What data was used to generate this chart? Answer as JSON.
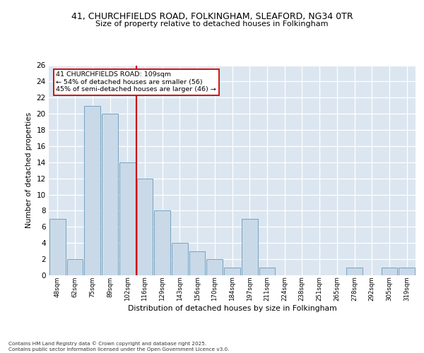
{
  "title_line1": "41, CHURCHFIELDS ROAD, FOLKINGHAM, SLEAFORD, NG34 0TR",
  "title_line2": "Size of property relative to detached houses in Folkingham",
  "xlabel": "Distribution of detached houses by size in Folkingham",
  "ylabel": "Number of detached properties",
  "categories": [
    "48sqm",
    "62sqm",
    "75sqm",
    "89sqm",
    "102sqm",
    "116sqm",
    "129sqm",
    "143sqm",
    "156sqm",
    "170sqm",
    "184sqm",
    "197sqm",
    "211sqm",
    "224sqm",
    "238sqm",
    "251sqm",
    "265sqm",
    "278sqm",
    "292sqm",
    "305sqm",
    "319sqm"
  ],
  "values": [
    7,
    2,
    21,
    20,
    14,
    12,
    8,
    4,
    3,
    2,
    1,
    7,
    1,
    0,
    0,
    0,
    0,
    1,
    0,
    1,
    1
  ],
  "bar_color": "#c9d9e8",
  "bar_edge_color": "#6699bb",
  "vline_x": 4.5,
  "vline_color": "#cc0000",
  "annotation_title": "41 CHURCHFIELDS ROAD: 109sqm",
  "annotation_line1": "← 54% of detached houses are smaller (56)",
  "annotation_line2": "45% of semi-detached houses are larger (46) →",
  "annotation_box_color": "#ffffff",
  "annotation_box_edge": "#cc0000",
  "ylim": [
    0,
    26
  ],
  "yticks": [
    0,
    2,
    4,
    6,
    8,
    10,
    12,
    14,
    16,
    18,
    20,
    22,
    24,
    26
  ],
  "background_color": "#dce6f0",
  "grid_color": "#ffffff",
  "footer_line1": "Contains HM Land Registry data © Crown copyright and database right 2025.",
  "footer_line2": "Contains public sector information licensed under the Open Government Licence v3.0."
}
